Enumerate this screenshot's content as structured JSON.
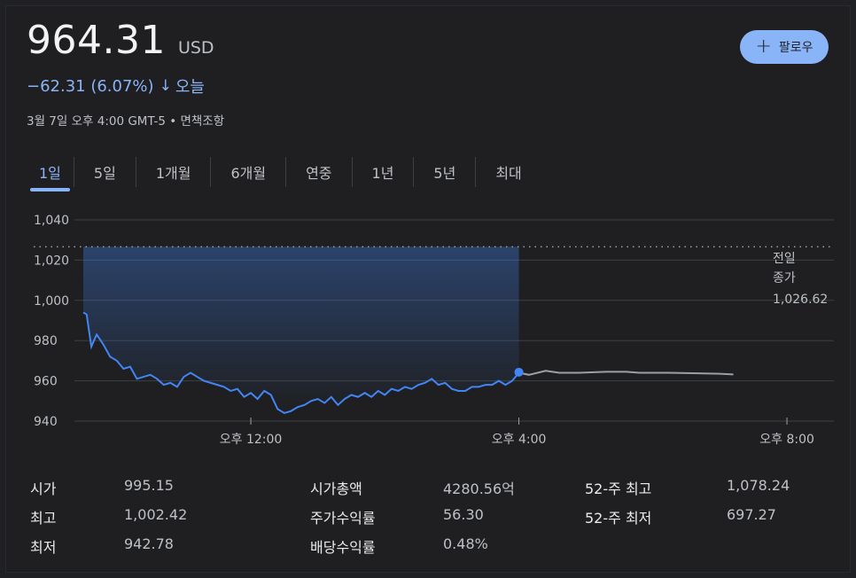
{
  "quote": {
    "price": "964.31",
    "currency": "USD",
    "change_text": "−62.31 (6.07%)",
    "change_arrow": "↓",
    "change_period": "오늘",
    "timestamp_text": "3월 7일 오후 4:00 GMT-5 • 면책조항"
  },
  "follow_button": {
    "plus": "+",
    "label": "팔로우"
  },
  "tabs": [
    {
      "label": "1일",
      "active": true
    },
    {
      "label": "5일"
    },
    {
      "label": "1개월"
    },
    {
      "label": "6개월"
    },
    {
      "label": "연중"
    },
    {
      "label": "1년"
    },
    {
      "label": "5년"
    },
    {
      "label": "최대"
    }
  ],
  "colors": {
    "accent": "#8ab4f8",
    "line": "#4285f4",
    "after_hours": "#9aa0a6"
  },
  "chart_data": {
    "type": "line",
    "ylim": [
      940,
      1040
    ],
    "yticks": [
      "1,040",
      "1,020",
      "1,000",
      "980",
      "960",
      "940"
    ],
    "ytick_values": [
      1040,
      1020,
      1000,
      980,
      960,
      940
    ],
    "xlim": [
      9.5,
      20.7
    ],
    "xticks": [
      {
        "label": "오후 12:00",
        "x": 12
      },
      {
        "label": "오후 4:00",
        "x": 16
      },
      {
        "label": "오후 8:00",
        "x": 20
      }
    ],
    "prev_close": {
      "label_line1": "전일",
      "label_line2": "종가",
      "value_text": "1,026.62",
      "value": 1026.62
    },
    "series": [
      {
        "segment": "regular",
        "x": [
          9.5,
          9.55,
          9.62,
          9.7,
          9.8,
          9.9,
          10,
          10.1,
          10.2,
          10.3,
          10.4,
          10.5,
          10.6,
          10.7,
          10.8,
          10.9,
          11,
          11.1,
          11.2,
          11.3,
          11.4,
          11.5,
          11.6,
          11.7,
          11.8,
          11.9,
          12,
          12.1,
          12.2,
          12.3,
          12.4,
          12.5,
          12.6,
          12.7,
          12.8,
          12.9,
          13,
          13.1,
          13.2,
          13.3,
          13.4,
          13.5,
          13.6,
          13.7,
          13.8,
          13.9,
          14,
          14.1,
          14.2,
          14.3,
          14.4,
          14.5,
          14.6,
          14.7,
          14.8,
          14.9,
          15,
          15.1,
          15.2,
          15.3,
          15.4,
          15.5,
          15.6,
          15.7,
          15.8,
          15.9,
          16
        ],
        "y": [
          994,
          993,
          977,
          983,
          978,
          972,
          970,
          966,
          967,
          961,
          962,
          963,
          961,
          958,
          959,
          957,
          962,
          964,
          962,
          960,
          959,
          958,
          957,
          955,
          956,
          952,
          954,
          951,
          955,
          953,
          946,
          944,
          945,
          947,
          948,
          950,
          951,
          949,
          952,
          948,
          951,
          953,
          952,
          954,
          952,
          955,
          953,
          956,
          955,
          957,
          956,
          958,
          959,
          961,
          958,
          959,
          956,
          955,
          955,
          957,
          957,
          958,
          958,
          960,
          958,
          960,
          964
        ]
      },
      {
        "segment": "after_hours",
        "x": [
          16,
          16.15,
          16.4,
          16.6,
          16.9,
          17.3,
          17.6,
          17.8,
          18.2,
          18.6,
          19,
          19.2
        ],
        "y": [
          964,
          963,
          965,
          964,
          964,
          964.5,
          964.5,
          964,
          964,
          963.8,
          963.5,
          963.2
        ]
      }
    ],
    "last_point": {
      "x": 16,
      "y": 964.31
    }
  },
  "stats": [
    {
      "label": "시가",
      "value": "995.15"
    },
    {
      "label": "최고",
      "value": "1,002.42"
    },
    {
      "label": "최저",
      "value": "942.78"
    },
    {
      "label": "시가총액",
      "value": "4280.56억"
    },
    {
      "label": "주가수익률",
      "value": "56.30"
    },
    {
      "label": "배당수익률",
      "value": "0.48%"
    },
    {
      "label": "52-주 최고",
      "value": "1,078.24"
    },
    {
      "label": "52-주 최저",
      "value": "697.27"
    }
  ]
}
